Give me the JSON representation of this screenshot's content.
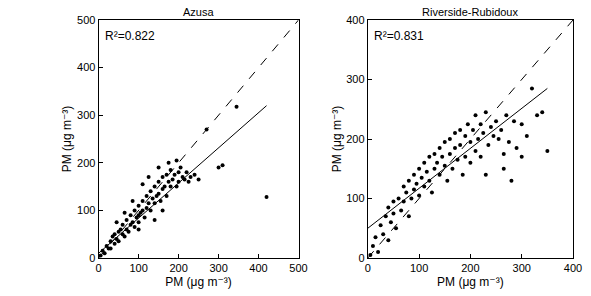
{
  "chart_data": [
    {
      "type": "scatter",
      "title": "Azusa",
      "x_label": "PM (μg m⁻³)",
      "y_label": "PM (μg m⁻³)",
      "annotation": "R²=0.822",
      "xlim": [
        0,
        500
      ],
      "ylim": [
        0,
        500
      ],
      "xticks": [
        0,
        100,
        200,
        300,
        400,
        500
      ],
      "yticks": [
        0,
        100,
        200,
        300,
        400,
        500
      ],
      "series": [
        {
          "type": "scatter",
          "marker": "circle",
          "color": "#000000",
          "x": [
            5,
            10,
            15,
            20,
            25,
            30,
            30,
            35,
            40,
            40,
            45,
            50,
            50,
            55,
            60,
            60,
            65,
            70,
            70,
            75,
            80,
            80,
            85,
            90,
            90,
            95,
            100,
            100,
            100,
            105,
            110,
            110,
            115,
            120,
            120,
            125,
            130,
            130,
            135,
            140,
            140,
            145,
            150,
            150,
            155,
            160,
            160,
            165,
            170,
            170,
            175,
            180,
            180,
            185,
            190,
            195,
            200,
            200,
            205,
            210,
            215,
            220,
            225,
            230,
            240,
            250,
            270,
            300,
            310,
            345,
            420,
            45,
            65,
            85,
            110,
            125,
            150,
            175,
            195,
            140,
            160,
            100
          ],
          "values": [
            5,
            15,
            10,
            25,
            20,
            35,
            20,
            45,
            30,
            50,
            40,
            55,
            35,
            60,
            50,
            70,
            45,
            80,
            60,
            55,
            90,
            70,
            75,
            100,
            65,
            85,
            110,
            90,
            75,
            95,
            120,
            100,
            85,
            130,
            105,
            115,
            140,
            100,
            125,
            150,
            115,
            130,
            160,
            135,
            120,
            170,
            145,
            150,
            175,
            130,
            160,
            185,
            150,
            165,
            175,
            150,
            180,
            160,
            190,
            170,
            165,
            180,
            160,
            170,
            175,
            165,
            270,
            190,
            195,
            318,
            128,
            75,
            95,
            120,
            155,
            170,
            190,
            200,
            205,
            80,
            100,
            60
          ]
        },
        {
          "type": "line",
          "line_style": "dashed",
          "color": "#000000",
          "x": [
            0,
            500
          ],
          "values": [
            0,
            500
          ]
        },
        {
          "type": "line",
          "line_style": "solid",
          "color": "#000000",
          "x": [
            0,
            420
          ],
          "values": [
            10,
            320
          ]
        }
      ]
    },
    {
      "type": "scatter",
      "title": "Riverside-Rubidoux",
      "x_label": "PM (μg m⁻³)",
      "y_label": "PM (μg m⁻³)",
      "annotation": "R²=0.831",
      "xlim": [
        0,
        400
      ],
      "ylim": [
        0,
        400
      ],
      "xticks": [
        0,
        100,
        200,
        300,
        400
      ],
      "yticks": [
        0,
        100,
        200,
        300,
        400
      ],
      "series": [
        {
          "type": "scatter",
          "marker": "circle",
          "color": "#000000",
          "x": [
            5,
            10,
            15,
            20,
            25,
            30,
            35,
            40,
            40,
            45,
            50,
            50,
            55,
            60,
            65,
            70,
            70,
            75,
            80,
            80,
            85,
            90,
            90,
            95,
            100,
            100,
            105,
            110,
            110,
            115,
            120,
            120,
            125,
            130,
            130,
            135,
            140,
            140,
            145,
            150,
            150,
            155,
            160,
            160,
            165,
            170,
            170,
            175,
            180,
            180,
            185,
            190,
            190,
            195,
            200,
            200,
            205,
            210,
            210,
            215,
            220,
            220,
            225,
            230,
            235,
            240,
            245,
            250,
            255,
            260,
            265,
            270,
            275,
            285,
            290,
            300,
            310,
            320,
            330,
            340,
            350,
            230,
            265,
            280,
            300
          ],
          "values": [
            5,
            20,
            35,
            10,
            55,
            40,
            70,
            85,
            30,
            60,
            95,
            75,
            50,
            100,
            80,
            120,
            95,
            110,
            130,
            70,
            100,
            140,
            115,
            125,
            150,
            105,
            135,
            160,
            120,
            145,
            170,
            130,
            110,
            175,
            150,
            160,
            185,
            140,
            170,
            195,
            155,
            130,
            200,
            175,
            150,
            210,
            185,
            165,
            215,
            190,
            140,
            205,
            170,
            225,
            195,
            160,
            215,
            240,
            180,
            200,
            225,
            170,
            210,
            245,
            190,
            220,
            205,
            230,
            200,
            215,
            175,
            240,
            195,
            230,
            185,
            225,
            205,
            285,
            240,
            245,
            180,
            140,
            150,
            130,
            170
          ]
        },
        {
          "type": "line",
          "line_style": "dashed",
          "color": "#000000",
          "x": [
            0,
            400
          ],
          "values": [
            0,
            400
          ]
        },
        {
          "type": "line",
          "line_style": "solid",
          "color": "#000000",
          "x": [
            0,
            350
          ],
          "values": [
            50,
            285
          ]
        }
      ]
    }
  ]
}
